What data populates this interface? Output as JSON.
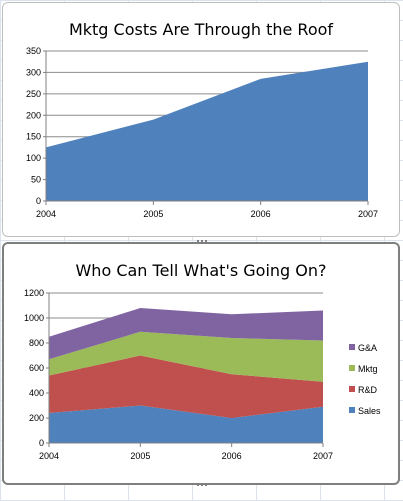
{
  "charts": [
    {
      "type": "area",
      "title": "Mktg Costs Are Through the Roof",
      "x": [
        "2004",
        "2005",
        "2006",
        "2007"
      ],
      "yticks": [
        0,
        50,
        100,
        150,
        200,
        250,
        300,
        350
      ],
      "ylim": [
        0,
        350
      ],
      "grid": true,
      "legend": "none",
      "series": [
        {
          "values": [
            125,
            190,
            285,
            325
          ],
          "color": "#4f81bd"
        }
      ]
    },
    {
      "type": "stacked-area",
      "title": "Who Can Tell What's Going On?",
      "x": [
        "2004",
        "2005",
        "2006",
        "2007"
      ],
      "yticks": [
        0,
        200,
        400,
        600,
        800,
        1000,
        1200
      ],
      "ylim": [
        0,
        1200
      ],
      "grid": true,
      "legend": "right",
      "series": [
        {
          "name": "Sales",
          "values": [
            240,
            300,
            200,
            290
          ],
          "color": "#4f81bd"
        },
        {
          "name": "R&D",
          "values": [
            300,
            400,
            350,
            200
          ],
          "color": "#c0504d"
        },
        {
          "name": "Mktg",
          "values": [
            130,
            190,
            290,
            330
          ],
          "color": "#9bbb59"
        },
        {
          "name": "G&A",
          "values": [
            180,
            190,
            190,
            240
          ],
          "color": "#8064a2"
        }
      ]
    }
  ]
}
